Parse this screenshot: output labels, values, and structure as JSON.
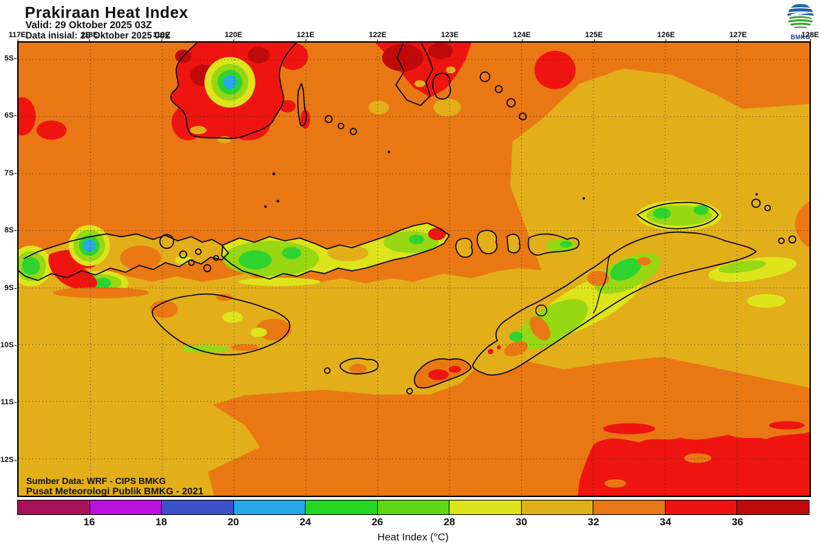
{
  "header": {
    "title": "Prakiraan Heat Index",
    "valid": "Valid: 29 Oktober 2025 03Z",
    "init": "Data inisial: 26 Oktober 2025 00Z"
  },
  "logo": {
    "label": "BMKG"
  },
  "axes": {
    "lon_labels": [
      "117E",
      "118E",
      "119E",
      "120E",
      "121E",
      "122E",
      "123E",
      "124E",
      "125E",
      "126E",
      "127E",
      "128E"
    ],
    "lat_labels": [
      "5S",
      "6S",
      "7S",
      "8S",
      "9S",
      "10S",
      "11S",
      "12S"
    ]
  },
  "map": {
    "source_line1": "Sumber Data: WRF - CIPS BMKG",
    "source_line2": "Pusat Meteorologi Publik BMKG - 2021"
  },
  "legend": {
    "label": "Heat Index (°C)",
    "ticks": [
      "16",
      "18",
      "20",
      "24",
      "26",
      "28",
      "30",
      "32",
      "34",
      "36"
    ],
    "colors": [
      "#A8115A",
      "#BB0FDE",
      "#3C50C8",
      "#28A8E8",
      "#22D622",
      "#5FD813",
      "#DDE41C",
      "#E0B016",
      "#E87815",
      "#F01111",
      "#BF0A0A"
    ]
  },
  "palette": {
    "gold_30_32": "#E2AF1B",
    "orange_32_34": "#E97814",
    "red_34_36": "#EE1510",
    "dark_red_36_plus": "#BF0A0A",
    "yellow_28_30": "#DDE41C",
    "yellow_green_26_28": "#97D713",
    "green_24_26": "#2FD32F",
    "light_blue_20_24": "#29A7E8",
    "blue_18_20": "#3C50C8",
    "purple_16_18": "#BB0FDE",
    "dark_magenta_below_16": "#A8115A"
  }
}
